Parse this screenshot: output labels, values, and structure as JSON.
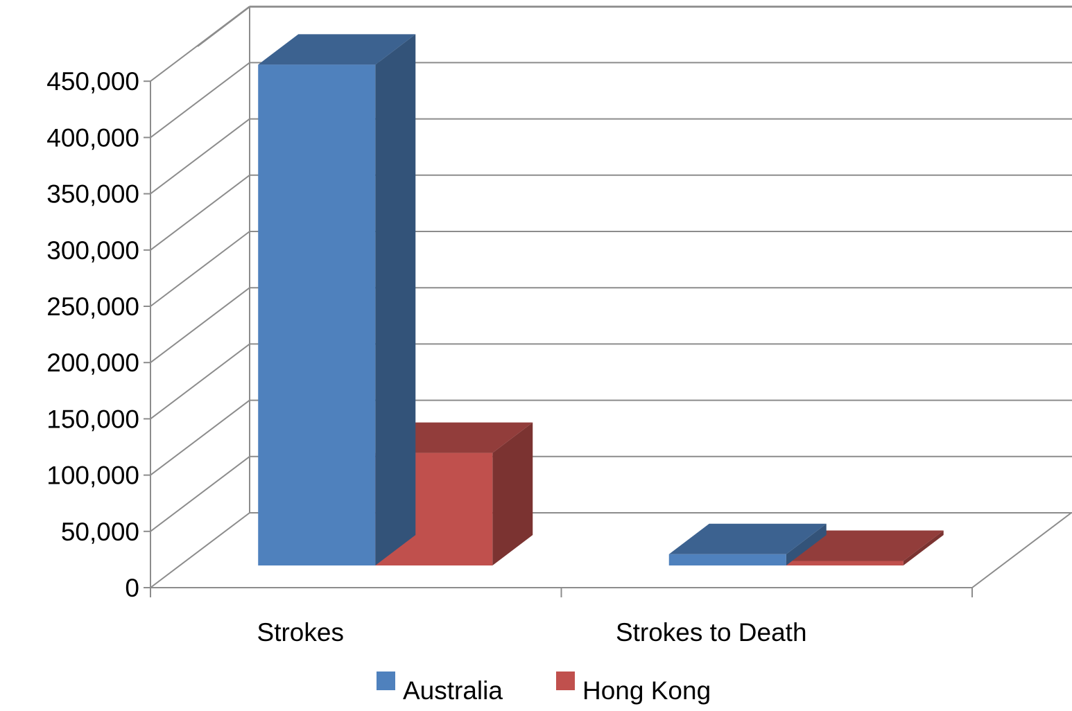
{
  "chart_data": {
    "type": "bar",
    "variant": "3d-clustered-column",
    "title": "",
    "xlabel": "",
    "ylabel": "",
    "categories": [
      "Strokes",
      "Strokes to Death"
    ],
    "series": [
      {
        "name": "Australia",
        "values": [
          445000,
          10000
        ],
        "color": "#4F81BD"
      },
      {
        "name": "Hong Kong",
        "values": [
          100000,
          4000
        ],
        "color": "#C0504D"
      }
    ],
    "ylim": [
      0,
      450000
    ],
    "y_ticks": [
      "0",
      "50,000",
      "100,000",
      "150,000",
      "200,000",
      "250,000",
      "300,000",
      "350,000",
      "400,000",
      "450,000"
    ],
    "grid": true,
    "legend": "bottom"
  }
}
